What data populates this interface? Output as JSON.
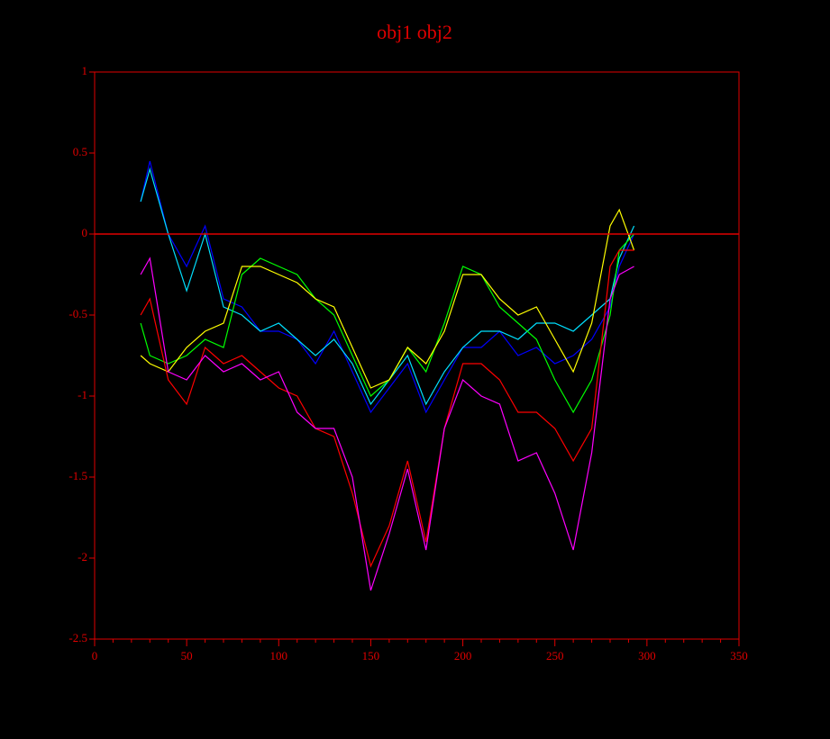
{
  "chart_data": {
    "type": "line",
    "title": "obj1 obj2",
    "x": [
      25,
      30,
      40,
      50,
      60,
      70,
      80,
      90,
      100,
      110,
      120,
      130,
      140,
      150,
      160,
      170,
      180,
      190,
      200,
      210,
      220,
      230,
      240,
      250,
      260,
      270,
      280,
      285,
      293
    ],
    "series": [
      {
        "color": "#0000ff",
        "values": [
          0.2,
          0.45,
          0,
          -0.2,
          0.05,
          -0.4,
          -0.45,
          -0.6,
          -0.6,
          -0.65,
          -0.8,
          -0.6,
          -0.85,
          -1.1,
          -0.95,
          -0.8,
          -1.1,
          -0.9,
          -0.7,
          -0.7,
          -0.6,
          -0.75,
          -0.7,
          -0.8,
          -0.75,
          -0.65,
          -0.45,
          -0.2,
          0
        ]
      },
      {
        "color": "#00e0ff",
        "values": [
          0.2,
          0.4,
          0,
          -0.35,
          0,
          -0.45,
          -0.5,
          -0.6,
          -0.55,
          -0.65,
          -0.75,
          -0.65,
          -0.8,
          -1.05,
          -0.9,
          -0.75,
          -1.05,
          -0.85,
          -0.7,
          -0.6,
          -0.6,
          -0.65,
          -0.55,
          -0.55,
          -0.6,
          -0.5,
          -0.4,
          -0.15,
          0.05
        ]
      },
      {
        "color": "#00ff00",
        "values": [
          -0.55,
          -0.75,
          -0.8,
          -0.75,
          -0.65,
          -0.7,
          -0.25,
          -0.15,
          -0.2,
          -0.25,
          -0.4,
          -0.5,
          -0.75,
          -1,
          -0.9,
          -0.7,
          -0.85,
          -0.55,
          -0.2,
          -0.25,
          -0.45,
          -0.55,
          -0.65,
          -0.9,
          -1.1,
          -0.9,
          -0.5,
          -0.1,
          0
        ]
      },
      {
        "color": "#ffff00",
        "values": [
          -0.75,
          -0.8,
          -0.85,
          -0.7,
          -0.6,
          -0.55,
          -0.2,
          -0.2,
          -0.25,
          -0.3,
          -0.4,
          -0.45,
          -0.7,
          -0.95,
          -0.9,
          -0.7,
          -0.8,
          -0.6,
          -0.25,
          -0.25,
          -0.4,
          -0.5,
          -0.45,
          -0.65,
          -0.85,
          -0.55,
          0.05,
          0.15,
          -0.1
        ]
      },
      {
        "color": "#ff0000",
        "values": [
          -0.5,
          -0.4,
          -0.9,
          -1.05,
          -0.7,
          -0.8,
          -0.75,
          -0.85,
          -0.95,
          -1,
          -1.2,
          -1.25,
          -1.6,
          -2.05,
          -1.8,
          -1.4,
          -1.9,
          -1.2,
          -0.8,
          -0.8,
          -0.9,
          -1.1,
          -1.1,
          -1.2,
          -1.4,
          -1.2,
          -0.2,
          -0.1,
          -0.1
        ]
      },
      {
        "color": "#ff00ff",
        "values": [
          -0.25,
          -0.15,
          -0.85,
          -0.9,
          -0.75,
          -0.85,
          -0.8,
          -0.9,
          -0.85,
          -1.1,
          -1.2,
          -1.2,
          -1.5,
          -2.2,
          -1.85,
          -1.45,
          -1.95,
          -1.2,
          -0.9,
          -1,
          -1.05,
          -1.4,
          -1.35,
          -1.6,
          -1.95,
          -1.35,
          -0.4,
          -0.25,
          -0.2
        ]
      }
    ],
    "xlim": [
      0,
      350
    ],
    "xticks": [
      0,
      50,
      100,
      150,
      200,
      250,
      300,
      350
    ],
    "xminorticks": [
      10,
      20,
      30,
      40,
      60,
      70,
      80,
      90,
      110,
      120,
      130,
      140,
      160,
      170,
      180,
      190,
      210,
      220,
      230,
      240,
      260,
      270,
      280,
      290,
      310,
      320,
      330,
      340
    ],
    "ylim": [
      -2.5,
      1
    ],
    "yticks": [
      1,
      0.5,
      0,
      -0.5,
      -1,
      -1.5,
      -2,
      -2.5
    ],
    "hline": 0,
    "axis_color": "#e00000"
  }
}
